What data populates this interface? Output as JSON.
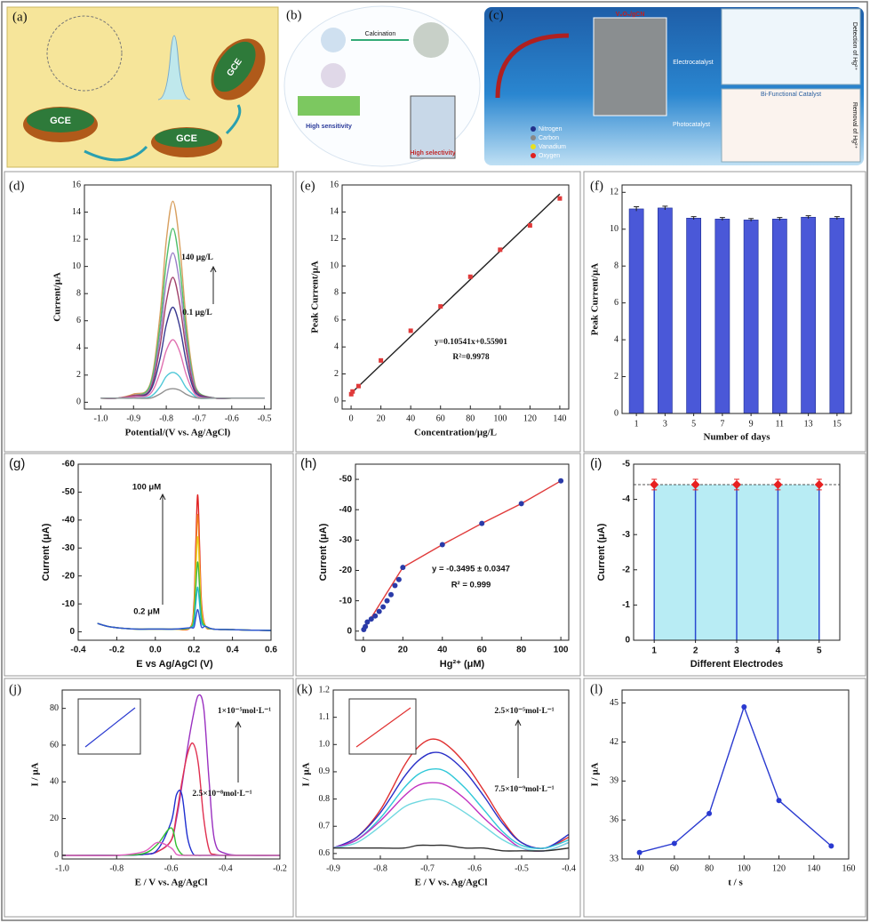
{
  "schematics": {
    "a": {
      "label": "(a)",
      "texts": [
        "GCE",
        "GCE",
        "GCE"
      ]
    },
    "b": {
      "label": "(b)",
      "texts": [
        "Calcination",
        "High sensitivity",
        "High selectivity"
      ]
    },
    "c": {
      "label": "(c)",
      "texts": [
        "V₂O₅/gCN",
        "Electrocatalyst",
        "Photocatalyst",
        "Bi-Functional Catalyst",
        "Nitrogen",
        "Carbon",
        "Vanadium",
        "Oxygen",
        "Detection of Hg²⁺",
        "Removal of Hg²⁺"
      ]
    }
  },
  "chart_data": [
    {
      "type": "line",
      "label": "(d)",
      "x_label": "Potential/(V vs. Ag/AgCl)",
      "y_label": "Current/μA",
      "annotations": [
        "140 μg/L",
        "0.1 μg/L"
      ],
      "xlim": [
        -1.05,
        -0.48
      ],
      "xticks": [
        {
          "value": -1,
          "label": "-1.0"
        },
        -0.9,
        -0.8,
        -0.7,
        -0.6,
        -0.5
      ],
      "ylim": [
        -0.5,
        16
      ],
      "yticks": [
        0,
        2,
        4,
        6,
        8,
        10,
        12,
        14,
        16
      ],
      "x": [
        -1,
        -0.95,
        -0.9,
        -0.85,
        -0.82,
        -0.8,
        -0.78,
        -0.76,
        -0.74,
        -0.72,
        -0.7,
        -0.65,
        -0.6,
        -0.5
      ],
      "series": [
        {
          "color": "#d8a060",
          "values": [
            0.3,
            0.3,
            0.6,
            1.3,
            6.2,
            11.9,
            14.8,
            11.9,
            6.2,
            2.3,
            0.7,
            0.3,
            0.3,
            0.3
          ]
        },
        {
          "color": "#4fbf6a",
          "values": [
            0.3,
            0.3,
            0.5,
            1.2,
            5.4,
            10.3,
            12.8,
            10.3,
            5.4,
            2.0,
            0.7,
            0.3,
            0.3,
            0.3
          ]
        },
        {
          "color": "#9a80c8",
          "values": [
            0.3,
            0.3,
            0.5,
            1.0,
            4.7,
            8.9,
            11.0,
            8.9,
            4.7,
            1.8,
            0.6,
            0.3,
            0.3,
            0.3
          ]
        },
        {
          "color": "#a0406a",
          "values": [
            0.3,
            0.3,
            0.5,
            0.9,
            4.0,
            7.4,
            9.2,
            7.4,
            4.0,
            1.5,
            0.6,
            0.3,
            0.3,
            0.3
          ]
        },
        {
          "color": "#3a3a90",
          "values": [
            0.3,
            0.3,
            0.4,
            0.8,
            3.1,
            5.7,
            7.0,
            5.7,
            3.1,
            1.2,
            0.5,
            0.3,
            0.3,
            0.3
          ]
        },
        {
          "color": "#e070b0",
          "values": [
            0.3,
            0.3,
            0.4,
            0.6,
            2.1,
            3.8,
            4.6,
            3.8,
            2.1,
            0.9,
            0.4,
            0.3,
            0.3,
            0.3
          ]
        },
        {
          "color": "#50c8d8",
          "values": [
            0.3,
            0.3,
            0.3,
            0.4,
            1.1,
            1.9,
            2.2,
            1.9,
            1.1,
            0.6,
            0.3,
            0.3,
            0.3,
            0.3
          ]
        },
        {
          "color": "#909090",
          "values": [
            0.3,
            0.3,
            0.3,
            0.3,
            0.6,
            0.9,
            1.0,
            0.9,
            0.6,
            0.4,
            0.3,
            0.3,
            0.3,
            0.3
          ]
        }
      ]
    },
    {
      "type": "scatter",
      "label": "(e)",
      "x_label": "Concentration/μg/L",
      "y_label": "Peak Current/μA",
      "annotations": [
        "y=0.10541x+0.55901",
        "R²=0.9978"
      ],
      "xlim": [
        -6,
        146
      ],
      "xticks": [
        0,
        20,
        40,
        60,
        80,
        100,
        120,
        140
      ],
      "ylim": [
        -0.6,
        16
      ],
      "yticks": [
        0,
        2,
        4,
        6,
        8,
        10,
        12,
        14,
        16
      ],
      "series": [
        {
          "color": "#222222",
          "x": [
            0,
            140
          ],
          "values": [
            0.56,
            15.32
          ]
        },
        {
          "color": "#e03a3a",
          "marker": "square",
          "line": false,
          "x": [
            0.1,
            1,
            5,
            20,
            40,
            60,
            80,
            100,
            120,
            140
          ],
          "values": [
            0.5,
            0.7,
            1.1,
            3.0,
            5.2,
            7.0,
            9.2,
            11.2,
            13.0,
            15.0
          ]
        }
      ]
    },
    {
      "type": "bar",
      "label": "(f)",
      "x_label": "Number of days",
      "y_label": "Peak Current/μA",
      "categories": [
        "1",
        "3",
        "5",
        "7",
        "9",
        "11",
        "13",
        "15"
      ],
      "values": [
        11.1,
        11.15,
        10.6,
        10.55,
        10.5,
        10.55,
        10.65,
        10.6
      ],
      "errors": [
        0.12,
        0.1,
        0.08,
        0.08,
        0.08,
        0.08,
        0.08,
        0.08
      ],
      "color": "#4a58d8",
      "ylim": [
        0,
        12.4
      ],
      "yticks": [
        0,
        2,
        4,
        6,
        8,
        10,
        12
      ]
    },
    {
      "type": "line",
      "label": "(g)",
      "x_label": "E vs Ag/AgCl (V)",
      "y_label": "Current (μA)",
      "annotations": [
        "100 μM",
        "0.2 μM"
      ],
      "xlim": [
        -0.4,
        0.6
      ],
      "xticks": [
        -0.4,
        -0.2,
        {
          "value": 0,
          "label": "0.0"
        },
        0.2,
        0.4,
        0.6
      ],
      "ylim": [
        3,
        -60
      ],
      "yticks": [
        0,
        -10,
        -20,
        -30,
        -40,
        -50,
        -60
      ],
      "x": [
        -0.3,
        -0.25,
        -0.2,
        -0.1,
        0,
        0.1,
        0.18,
        0.2,
        0.21,
        0.22,
        0.23,
        0.24,
        0.26,
        0.3,
        0.4,
        0.5,
        0.6
      ],
      "series": [
        {
          "color": "#e02020",
          "values": [
            -3,
            -2,
            -1.5,
            -1,
            -1,
            -1,
            -1.5,
            -9.8,
            -31.9,
            -49,
            -29.4,
            -9.8,
            -2,
            -1,
            -0.8,
            -0.6,
            -0.5
          ]
        },
        {
          "color": "#f08020",
          "values": [
            -3,
            -2,
            -1.5,
            -1,
            -1,
            -1,
            -1.5,
            -8.4,
            -27.3,
            -42,
            -25.2,
            -8.4,
            -2,
            -1,
            -0.8,
            -0.6,
            -0.5
          ]
        },
        {
          "color": "#e8d020",
          "values": [
            -3,
            -2,
            -1.5,
            -1,
            -1,
            -1,
            -1.5,
            -6.8,
            -22.1,
            -34,
            -20.4,
            -6.8,
            -2,
            -1,
            -0.8,
            -0.6,
            -0.5
          ]
        },
        {
          "color": "#40b840",
          "values": [
            -3,
            -2,
            -1.5,
            -1,
            -1,
            -1,
            -1.5,
            -5,
            -16.3,
            -25,
            -15,
            -5,
            -2,
            -1,
            -0.8,
            -0.6,
            -0.5
          ]
        },
        {
          "color": "#20b8c8",
          "values": [
            -3,
            -2,
            -1.5,
            -1,
            -1,
            -1,
            -1.5,
            -3.2,
            -10.4,
            -16,
            -9.6,
            -3.2,
            -2,
            -1,
            -0.8,
            -0.6,
            -0.5
          ]
        },
        {
          "color": "#3050d0",
          "values": [
            -3,
            -2,
            -1.5,
            -1,
            -1,
            -1,
            -1.5,
            -1.6,
            -5.2,
            -8,
            -4.8,
            -1.6,
            -2,
            -1,
            -0.8,
            -0.6,
            -0.5
          ]
        }
      ]
    },
    {
      "type": "scatter",
      "label": "(h)",
      "x_label": "Hg²⁺ (μM)",
      "y_label": "Current (μA)",
      "annotations": [
        "y = -0.3495 ± 0.0347",
        "R² = 0.999"
      ],
      "xlim": [
        -4,
        104
      ],
      "xticks": [
        0,
        20,
        40,
        60,
        80,
        100
      ],
      "ylim": [
        3,
        -55
      ],
      "yticks": [
        0,
        -10,
        -20,
        -30,
        -40,
        -50
      ],
      "series": [
        {
          "color": "#e03a3a",
          "x": [
            0.2,
            20,
            40,
            60,
            80,
            100
          ],
          "values": [
            -0.5,
            -21,
            -28.5,
            -35.5,
            -42,
            -49.5
          ]
        },
        {
          "color": "#2a3aa8",
          "marker": "circle",
          "line": false,
          "x": [
            0.2,
            1,
            2,
            4,
            6,
            8,
            10,
            12,
            14,
            16,
            18,
            20,
            40,
            60,
            80,
            100
          ],
          "values": [
            -0.5,
            -1.5,
            -3,
            -4,
            -5,
            -6.5,
            -8,
            -10,
            -12,
            -15,
            -17,
            -21,
            -28.5,
            -35.5,
            -42,
            -49.5
          ]
        }
      ]
    },
    {
      "type": "stem",
      "label": "(i)",
      "x_label": "Different Electrodes",
      "y_label": "Current (μA)",
      "categories": [
        "1",
        "2",
        "3",
        "4",
        "5"
      ],
      "values": [
        -4.42,
        -4.42,
        -4.42,
        -4.42,
        -4.42
      ],
      "errors": [
        0.15,
        0.15,
        0.15,
        0.15,
        0.15
      ],
      "color": "#2a4ad0",
      "marker_color": "#e82020",
      "fill": "#b8ecf4",
      "ylim": [
        0,
        -5
      ],
      "yticks": [
        0,
        -1,
        -2,
        -3,
        -4,
        -5
      ]
    },
    {
      "type": "line",
      "label": "(j)",
      "x_label": "E / V vs. Ag/AgCl",
      "y_label": "I / μA",
      "annotations": [
        "1×10⁻⁵mol·L⁻¹",
        "2.5×10⁻⁸mol·L⁻¹"
      ],
      "xlim": [
        -1,
        -0.2
      ],
      "xticks": [
        {
          "value": -1,
          "label": "-1.0"
        },
        -0.8,
        -0.6,
        -0.4,
        -0.2
      ],
      "ylim": [
        -2,
        90
      ],
      "yticks": [
        0,
        20,
        40,
        60,
        80
      ],
      "x": [
        -1,
        -0.8,
        -0.7,
        -0.65,
        -0.6,
        -0.58,
        -0.56,
        -0.54,
        -0.52,
        -0.5,
        -0.48,
        -0.46,
        -0.44,
        -0.4,
        -0.3,
        -0.2
      ],
      "series": [
        {
          "color": "#9a30c0",
          "values": [
            0,
            0,
            0.5,
            2,
            8,
            20,
            38,
            58,
            75,
            87,
            80,
            40,
            8,
            1,
            0,
            0
          ]
        },
        {
          "color": "#e03050",
          "values": [
            0,
            0,
            0.5,
            2,
            8,
            22,
            40,
            55,
            61,
            50,
            20,
            3,
            0.5,
            0,
            0,
            0
          ]
        },
        {
          "color": "#2030d0",
          "values": [
            0,
            0,
            0.5,
            3,
            18,
            33,
            33,
            10,
            1,
            0,
            0,
            0,
            0,
            0,
            0,
            0
          ]
        },
        {
          "color": "#30c030",
          "values": [
            0,
            0,
            1,
            6,
            15,
            5,
            0.5,
            0,
            0,
            0,
            0,
            0,
            0,
            0,
            0,
            0
          ]
        },
        {
          "color": "#e060c0",
          "values": [
            0,
            0,
            2,
            7,
            4,
            0.5,
            0,
            0,
            0,
            0,
            0,
            0,
            0,
            0,
            0,
            0
          ]
        }
      ]
    },
    {
      "type": "line",
      "label": "(k)",
      "x_label": "E / V vs. Ag/AgCl",
      "y_label": "I / μA",
      "annotations": [
        "2.5×10⁻⁵mol·L⁻¹",
        "7.5×10⁻⁹mol·L⁻¹"
      ],
      "xlim": [
        -0.9,
        -0.4
      ],
      "xticks": [
        -0.9,
        -0.8,
        -0.7,
        -0.6,
        -0.5,
        -0.4
      ],
      "ylim": [
        0.58,
        1.2
      ],
      "yticks": [
        0.6,
        0.7,
        0.8,
        0.9,
        {
          "value": 1,
          "label": "1.0"
        },
        1.1,
        1.2
      ],
      "x": [
        -0.9,
        -0.85,
        -0.8,
        -0.75,
        -0.72,
        -0.69,
        -0.66,
        -0.62,
        -0.58,
        -0.54,
        -0.5,
        -0.45,
        -0.4
      ],
      "series": [
        {
          "color": "#e03030",
          "values": [
            0.62,
            0.66,
            0.76,
            0.92,
            0.99,
            1.02,
            1.0,
            0.93,
            0.83,
            0.72,
            0.64,
            0.62,
            0.66
          ]
        },
        {
          "color": "#2a30c8",
          "values": [
            0.62,
            0.66,
            0.75,
            0.88,
            0.94,
            0.97,
            0.96,
            0.9,
            0.81,
            0.71,
            0.64,
            0.62,
            0.67
          ]
        },
        {
          "color": "#30c8d8",
          "values": [
            0.62,
            0.65,
            0.73,
            0.84,
            0.89,
            0.91,
            0.9,
            0.84,
            0.76,
            0.68,
            0.63,
            0.62,
            0.65
          ]
        },
        {
          "color": "#c030c0",
          "values": [
            0.62,
            0.65,
            0.72,
            0.81,
            0.85,
            0.86,
            0.85,
            0.8,
            0.73,
            0.67,
            0.62,
            0.61,
            0.64
          ]
        },
        {
          "color": "#70d8e0",
          "values": [
            0.62,
            0.64,
            0.7,
            0.77,
            0.79,
            0.8,
            0.79,
            0.75,
            0.7,
            0.65,
            0.62,
            0.61,
            0.64
          ]
        },
        {
          "color": "#303030",
          "values": [
            0.62,
            0.62,
            0.62,
            0.62,
            0.63,
            0.63,
            0.63,
            0.62,
            0.62,
            0.61,
            0.61,
            0.61,
            0.62
          ]
        }
      ]
    },
    {
      "type": "line",
      "label": "(l)",
      "x_label": "t / s",
      "y_label": "I / μA",
      "xlim": [
        30,
        160
      ],
      "xticks": [
        40,
        60,
        80,
        100,
        120,
        140,
        160
      ],
      "ylim": [
        33,
        46
      ],
      "yticks": [
        33,
        36,
        39,
        42,
        45
      ],
      "x": [
        40,
        60,
        80,
        100,
        120,
        150
      ],
      "series": [
        {
          "color": "#2a3ad0",
          "marker": "circle",
          "straight": true,
          "values": [
            33.5,
            34.2,
            36.5,
            44.7,
            37.5,
            34
          ]
        }
      ]
    }
  ]
}
